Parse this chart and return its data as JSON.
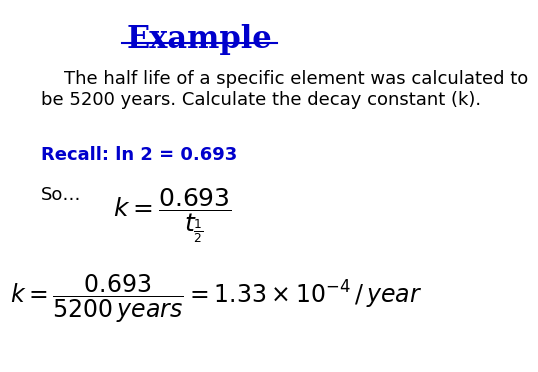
{
  "title": "Example",
  "title_color": "#0000CC",
  "title_fontsize": 22,
  "title_underline": true,
  "body_text": "    The half life of a specific element was calculated to\nbe 5200 years. Calculate the decay constant (k).",
  "body_fontsize": 13,
  "body_color": "#000000",
  "recall_text": "Recall: ln 2 = 0.693",
  "recall_color": "#0000CC",
  "recall_fontsize": 13,
  "so_text": "So…",
  "so_fontsize": 13,
  "so_color": "#000000",
  "eq1_latex": "$k = \\dfrac{0.693}{t_{\\frac{1}{2}}}$",
  "eq2_latex": "$k = \\dfrac{0.693}{5200\\,years} = 1.33\\times10^{-4}\\,/\\,year$",
  "eq_color": "#000000",
  "eq1_fontsize": 18,
  "eq2_fontsize": 17,
  "bg_color": "#ffffff"
}
